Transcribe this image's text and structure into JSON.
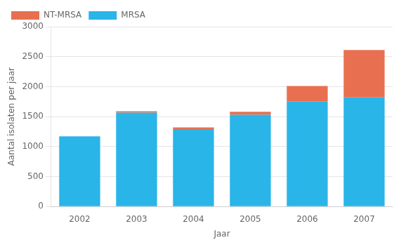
{
  "chart_data": {
    "type": "bar",
    "stacked": true,
    "categories": [
      "2002",
      "2003",
      "2004",
      "2005",
      "2006",
      "2007"
    ],
    "series": [
      {
        "name": "MRSA",
        "color": "#29B5E8",
        "values": [
          1170,
          1565,
          1290,
          1530,
          1750,
          1820
        ]
      },
      {
        "name": "NT-MRSA",
        "color": "#E87050",
        "values": [
          0,
          25,
          30,
          50,
          260,
          790
        ]
      }
    ],
    "xlabel": "Jaar",
    "ylabel": "Aantal isolaten per jaar",
    "ylim": [
      0,
      3000
    ],
    "yticks": [
      0,
      500,
      1000,
      1500,
      2000,
      2500,
      3000
    ],
    "grid": true,
    "legend": "upper left"
  }
}
